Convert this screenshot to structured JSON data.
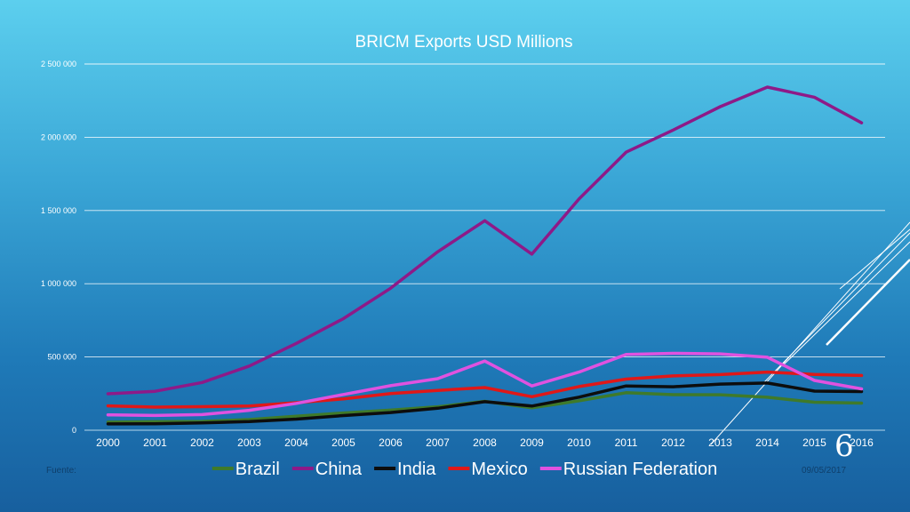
{
  "slide": {
    "source_label": "Fuente:",
    "date": "09/05/2017",
    "slide_number": "6"
  },
  "colors": {
    "Brazil": "#3f7a2a",
    "China": "#8e1a88",
    "India": "#0d0d0d",
    "Mexico": "#e01818",
    "Russian Federation": "#e052e0"
  },
  "chart_data": {
    "type": "line",
    "title": "BRICM Exports USD Millions",
    "xlabel": "",
    "ylabel": "",
    "categories": [
      "2000",
      "2001",
      "2002",
      "2003",
      "2004",
      "2005",
      "2006",
      "2007",
      "2008",
      "2009",
      "2010",
      "2011",
      "2012",
      "2013",
      "2014",
      "2015",
      "2016"
    ],
    "ylim": [
      0,
      2500000
    ],
    "yticks": [
      0,
      500000,
      1000000,
      1500000,
      2000000,
      2500000
    ],
    "ytick_labels": [
      "0",
      "500 000",
      "1 000 000",
      "1 500 000",
      "2 000 000",
      "2 500 000"
    ],
    "grid": true,
    "legend_position": "bottom",
    "series": [
      {
        "name": "Brazil",
        "values": [
          55000,
          58000,
          60000,
          73000,
          96000,
          118000,
          137000,
          160000,
          197000,
          153000,
          201000,
          256000,
          243000,
          242000,
          225000,
          191000,
          185000
        ]
      },
      {
        "name": "China",
        "values": [
          249000,
          266000,
          326000,
          438000,
          593000,
          762000,
          969000,
          1218000,
          1430000,
          1202000,
          1578000,
          1898000,
          2049000,
          2209000,
          2342000,
          2273000,
          2098000
        ]
      },
      {
        "name": "India",
        "values": [
          43000,
          44000,
          50000,
          59000,
          76000,
          100000,
          121000,
          150000,
          195000,
          165000,
          226000,
          302000,
          297000,
          315000,
          322000,
          267000,
          264000
        ]
      },
      {
        "name": "Mexico",
        "values": [
          166000,
          158000,
          161000,
          165000,
          188000,
          214000,
          250000,
          272000,
          291000,
          229000,
          298000,
          349000,
          371000,
          380000,
          397000,
          381000,
          374000
        ]
      },
      {
        "name": "Russian Federation",
        "values": [
          105000,
          101000,
          107000,
          136000,
          183000,
          244000,
          304000,
          352000,
          472000,
          302000,
          397000,
          517000,
          525000,
          521000,
          498000,
          340000,
          282000
        ]
      }
    ]
  }
}
